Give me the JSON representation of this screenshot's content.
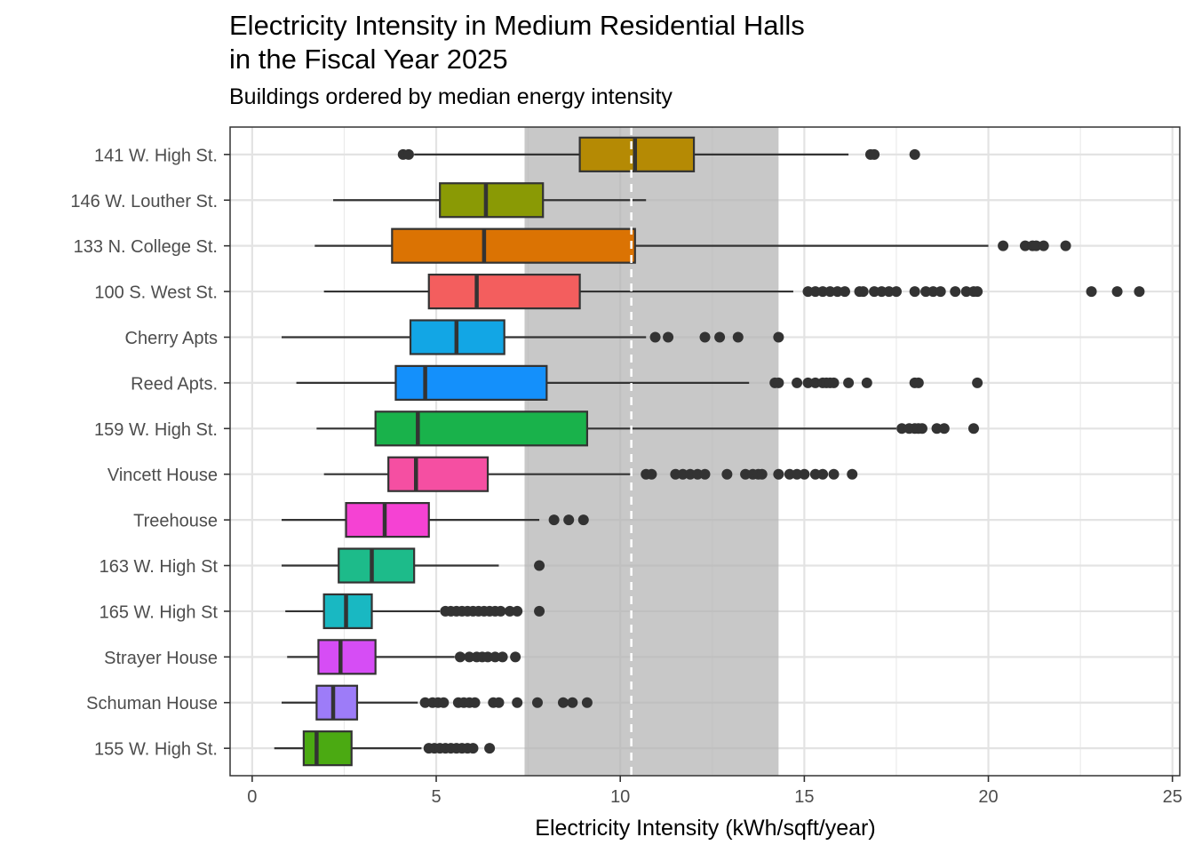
{
  "chart_data": {
    "type": "boxplot",
    "title_line1": "Electricity Intensity in Medium Residential Halls",
    "title_line2": "in the Fiscal Year 2025",
    "subtitle": "Buildings ordered by median energy intensity",
    "xlabel": "Electricity Intensity (kWh/sqft/year)",
    "ylabel": "",
    "xlim": [
      -0.6,
      25.2
    ],
    "xticks": [
      0,
      5,
      10,
      15,
      20,
      25
    ],
    "reference_band": [
      7.4,
      14.3
    ],
    "reference_line": 10.3,
    "grid": true,
    "legend": "none",
    "series": [
      {
        "name": "141 W. High St.",
        "color": "#B58A04",
        "whisker_low": 4.4,
        "q1": 8.9,
        "median": 10.4,
        "q3": 12.0,
        "whisker_high": 16.2,
        "outliers": [
          4.1,
          4.25,
          16.8,
          16.9,
          18.0
        ]
      },
      {
        "name": "146 W. Louther St.",
        "color": "#8A9A05",
        "whisker_low": 2.2,
        "q1": 5.1,
        "median": 6.35,
        "q3": 7.9,
        "whisker_high": 10.7,
        "outliers": []
      },
      {
        "name": "133 N. College St.",
        "color": "#DB7303",
        "whisker_low": 1.7,
        "q1": 3.8,
        "median": 6.3,
        "q3": 10.4,
        "whisker_high": 20.0,
        "outliers": [
          20.4,
          21.0,
          21.2,
          21.3,
          21.5,
          22.1
        ]
      },
      {
        "name": "100 S. West St.",
        "color": "#F35E5E",
        "whisker_low": 1.95,
        "q1": 4.8,
        "median": 6.1,
        "q3": 8.9,
        "whisker_high": 14.7,
        "outliers": [
          15.1,
          15.3,
          15.5,
          15.7,
          15.9,
          16.1,
          16.5,
          16.6,
          16.9,
          17.1,
          17.3,
          17.5,
          18.0,
          18.3,
          18.5,
          18.7,
          19.1,
          19.4,
          19.6,
          19.7,
          22.8,
          23.5,
          24.1
        ]
      },
      {
        "name": "Cherry Apts",
        "color": "#12A6E5",
        "whisker_low": 0.8,
        "q1": 4.3,
        "median": 5.55,
        "q3": 6.85,
        "whisker_high": 10.7,
        "outliers": [
          10.95,
          11.3,
          12.3,
          12.7,
          13.2,
          14.3
        ]
      },
      {
        "name": "Reed Apts.",
        "color": "#1490FB",
        "whisker_low": 1.2,
        "q1": 3.9,
        "median": 4.7,
        "q3": 8.0,
        "whisker_high": 13.5,
        "outliers": [
          14.2,
          14.3,
          14.8,
          15.1,
          15.3,
          15.5,
          15.6,
          15.7,
          15.8,
          16.2,
          16.7,
          18.0,
          18.1,
          19.7
        ]
      },
      {
        "name": "159 W. High St.",
        "color": "#19B24B",
        "whisker_low": 1.75,
        "q1": 3.35,
        "median": 4.5,
        "q3": 9.1,
        "whisker_high": 17.5,
        "outliers": [
          17.65,
          17.85,
          18.0,
          18.1,
          18.2,
          18.6,
          18.8,
          19.6
        ]
      },
      {
        "name": "Vincett House",
        "color": "#F54FA2",
        "whisker_low": 1.95,
        "q1": 3.7,
        "median": 4.45,
        "q3": 6.4,
        "whisker_high": 10.3,
        "outliers": [
          10.7,
          10.85,
          11.5,
          11.7,
          11.9,
          12.1,
          12.3,
          12.9,
          13.4,
          13.6,
          13.75,
          13.85,
          14.3,
          14.6,
          14.8,
          15.0,
          15.3,
          15.5,
          15.8,
          16.3
        ]
      },
      {
        "name": "Treehouse",
        "color": "#F542D3",
        "whisker_low": 0.8,
        "q1": 2.55,
        "median": 3.6,
        "q3": 4.8,
        "whisker_high": 7.8,
        "outliers": [
          8.2,
          8.6,
          9.0
        ]
      },
      {
        "name": "163 W. High St",
        "color": "#1DBB8A",
        "whisker_low": 0.8,
        "q1": 2.35,
        "median": 3.25,
        "q3": 4.4,
        "whisker_high": 6.7,
        "outliers": [
          7.8
        ]
      },
      {
        "name": "165 W. High St",
        "color": "#19B8C2",
        "whisker_low": 0.9,
        "q1": 1.95,
        "median": 2.55,
        "q3": 3.25,
        "whisker_high": 5.1,
        "outliers": [
          5.25,
          5.4,
          5.55,
          5.7,
          5.85,
          6.0,
          6.15,
          6.3,
          6.45,
          6.6,
          6.75,
          7.0,
          7.2,
          7.8
        ]
      },
      {
        "name": "Strayer House",
        "color": "#D64DF5",
        "whisker_low": 0.95,
        "q1": 1.8,
        "median": 2.4,
        "q3": 3.35,
        "whisker_high": 5.5,
        "outliers": [
          5.65,
          5.9,
          6.1,
          6.25,
          6.4,
          6.6,
          6.8,
          7.15
        ]
      },
      {
        "name": "Schuman House",
        "color": "#9D7CF8",
        "whisker_low": 0.8,
        "q1": 1.75,
        "median": 2.2,
        "q3": 2.85,
        "whisker_high": 4.5,
        "outliers": [
          4.7,
          4.9,
          5.05,
          5.2,
          5.6,
          5.75,
          5.9,
          6.05,
          6.55,
          6.7,
          7.2,
          7.75,
          8.45,
          8.7,
          9.1
        ]
      },
      {
        "name": "155 W. High St.",
        "color": "#4BAA12",
        "whisker_low": 0.6,
        "q1": 1.4,
        "median": 1.75,
        "q3": 2.7,
        "whisker_high": 4.6,
        "outliers": [
          4.8,
          4.95,
          5.1,
          5.25,
          5.4,
          5.55,
          5.7,
          5.85,
          6.0,
          6.45
        ]
      }
    ]
  }
}
